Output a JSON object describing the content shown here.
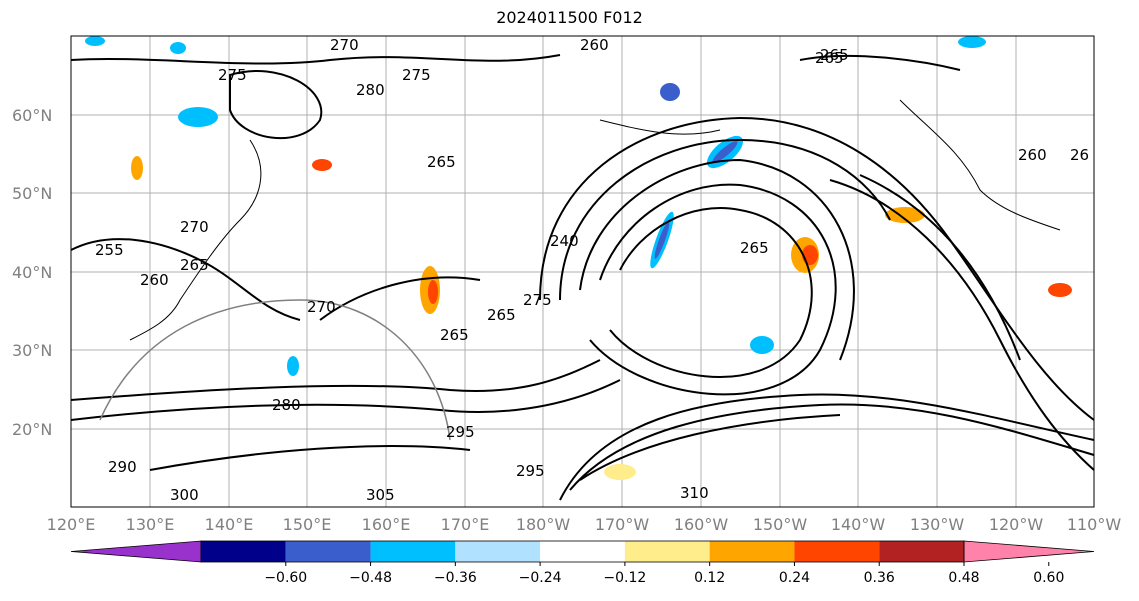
{
  "title": "2024011500 F012",
  "map": {
    "lat_labels": [
      "60°N",
      "50°N",
      "40°N",
      "30°N",
      "20°N"
    ],
    "lon_labels": [
      "120°E",
      "130°E",
      "140°E",
      "150°E",
      "160°E",
      "170°E",
      "180°W",
      "170°W",
      "160°W",
      "150°W",
      "140°W",
      "130°W",
      "120°W",
      "110°W"
    ],
    "contour_labels": [
      "270",
      "260",
      "265",
      "275",
      "280",
      "275",
      "265",
      "265",
      "270",
      "255",
      "260",
      "265",
      "270",
      "240",
      "275",
      "265",
      "265",
      "265",
      "280",
      "295",
      "295",
      "290",
      "300",
      "305",
      "310",
      "260",
      "26"
    ],
    "colors": {
      "coastline": "#000000",
      "grid": "#b0b0b0",
      "contour": "#000000"
    }
  },
  "colorbar": {
    "tick_labels": [
      "−0.60",
      "−0.48",
      "−0.36",
      "−0.24",
      "−0.12",
      "0.12",
      "0.24",
      "0.36",
      "0.48",
      "0.60"
    ],
    "colors": [
      "#9932CC",
      "#00008B",
      "#3A5FCD",
      "#00BFFF",
      "#B0E2FF",
      "#FFFFFF",
      "#FFEC8B",
      "#FFA500",
      "#FF4500",
      "#B22222",
      "#FF82AB"
    ]
  }
}
